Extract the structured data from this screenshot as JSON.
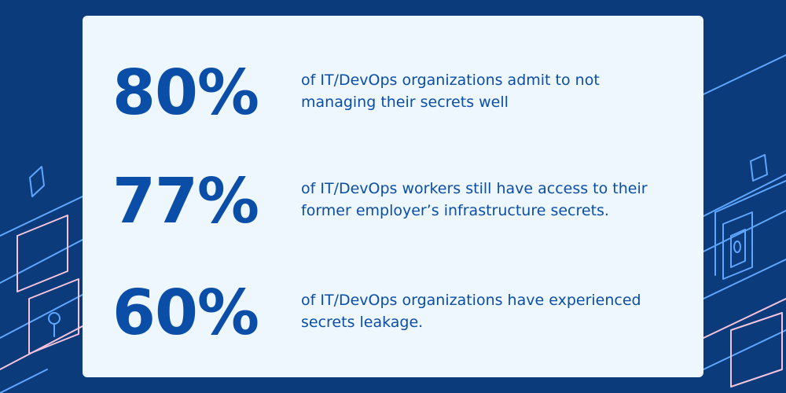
{
  "stats": [
    {
      "value": "80%",
      "text_line1": "of IT/DevOps organizations admit to not",
      "text_line2": "managing their secrets well"
    },
    {
      "value": "77%",
      "text_line1": "of IT/DevOps workers still have access to their",
      "text_line2": "former employer’s infrastructure secrets."
    },
    {
      "value": "60%",
      "text_line1": "of IT/DevOps organizations have experienced",
      "text_line2": "secrets leakage."
    }
  ],
  "colors": {
    "background": "#0b3b7a",
    "card": "#eef7fe",
    "text": "#0a4ea8",
    "line_light": "#5ea6ff",
    "line_pink": "#f5c4dc"
  },
  "decorations": {
    "left_icons": [
      "diamond-outline-icon",
      "lock-panel-icon",
      "keyhole-icon"
    ],
    "right_icons": [
      "diamond-outline-icon",
      "security-panel-icon",
      "shape-icon"
    ]
  }
}
